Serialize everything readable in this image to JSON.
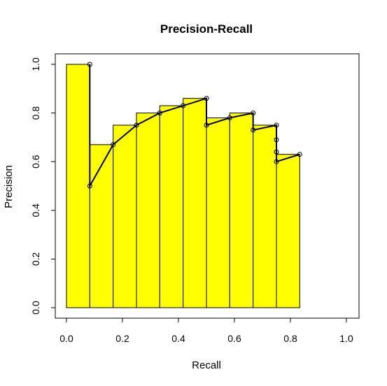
{
  "chart_data": {
    "type": "bar",
    "title": "Precision-Recall",
    "xlabel": "Recall",
    "ylabel": "Precision",
    "xlim": [
      0,
      1
    ],
    "ylim": [
      0,
      1
    ],
    "x_ticks": [
      "0.0",
      "0.2",
      "0.4",
      "0.6",
      "0.8",
      "1.0"
    ],
    "y_ticks": [
      "0.0",
      "0.2",
      "0.4",
      "0.6",
      "0.8",
      "1.0"
    ],
    "bar_color": "#ffff00",
    "bars": [
      {
        "x0": 0.0,
        "x1": 0.0833,
        "value": 1.0
      },
      {
        "x0": 0.0833,
        "x1": 0.1667,
        "value": 0.67
      },
      {
        "x0": 0.1667,
        "x1": 0.25,
        "value": 0.75
      },
      {
        "x0": 0.25,
        "x1": 0.3333,
        "value": 0.8
      },
      {
        "x0": 0.3333,
        "x1": 0.4167,
        "value": 0.83
      },
      {
        "x0": 0.4167,
        "x1": 0.5,
        "value": 0.86
      },
      {
        "x0": 0.5,
        "x1": 0.5833,
        "value": 0.78
      },
      {
        "x0": 0.5833,
        "x1": 0.6667,
        "value": 0.8
      },
      {
        "x0": 0.6667,
        "x1": 0.75,
        "value": 0.75
      },
      {
        "x0": 0.75,
        "x1": 0.8333,
        "value": 0.63
      }
    ],
    "curve": {
      "x": [
        0.0833,
        0.0833,
        0.1667,
        0.25,
        0.3333,
        0.4167,
        0.5,
        0.5,
        0.5833,
        0.6667,
        0.6667,
        0.75,
        0.75,
        0.75,
        0.75,
        0.8333
      ],
      "y": [
        1.0,
        0.5,
        0.67,
        0.75,
        0.8,
        0.83,
        0.86,
        0.75,
        0.78,
        0.8,
        0.73,
        0.75,
        0.69,
        0.64,
        0.6,
        0.63
      ]
    }
  }
}
